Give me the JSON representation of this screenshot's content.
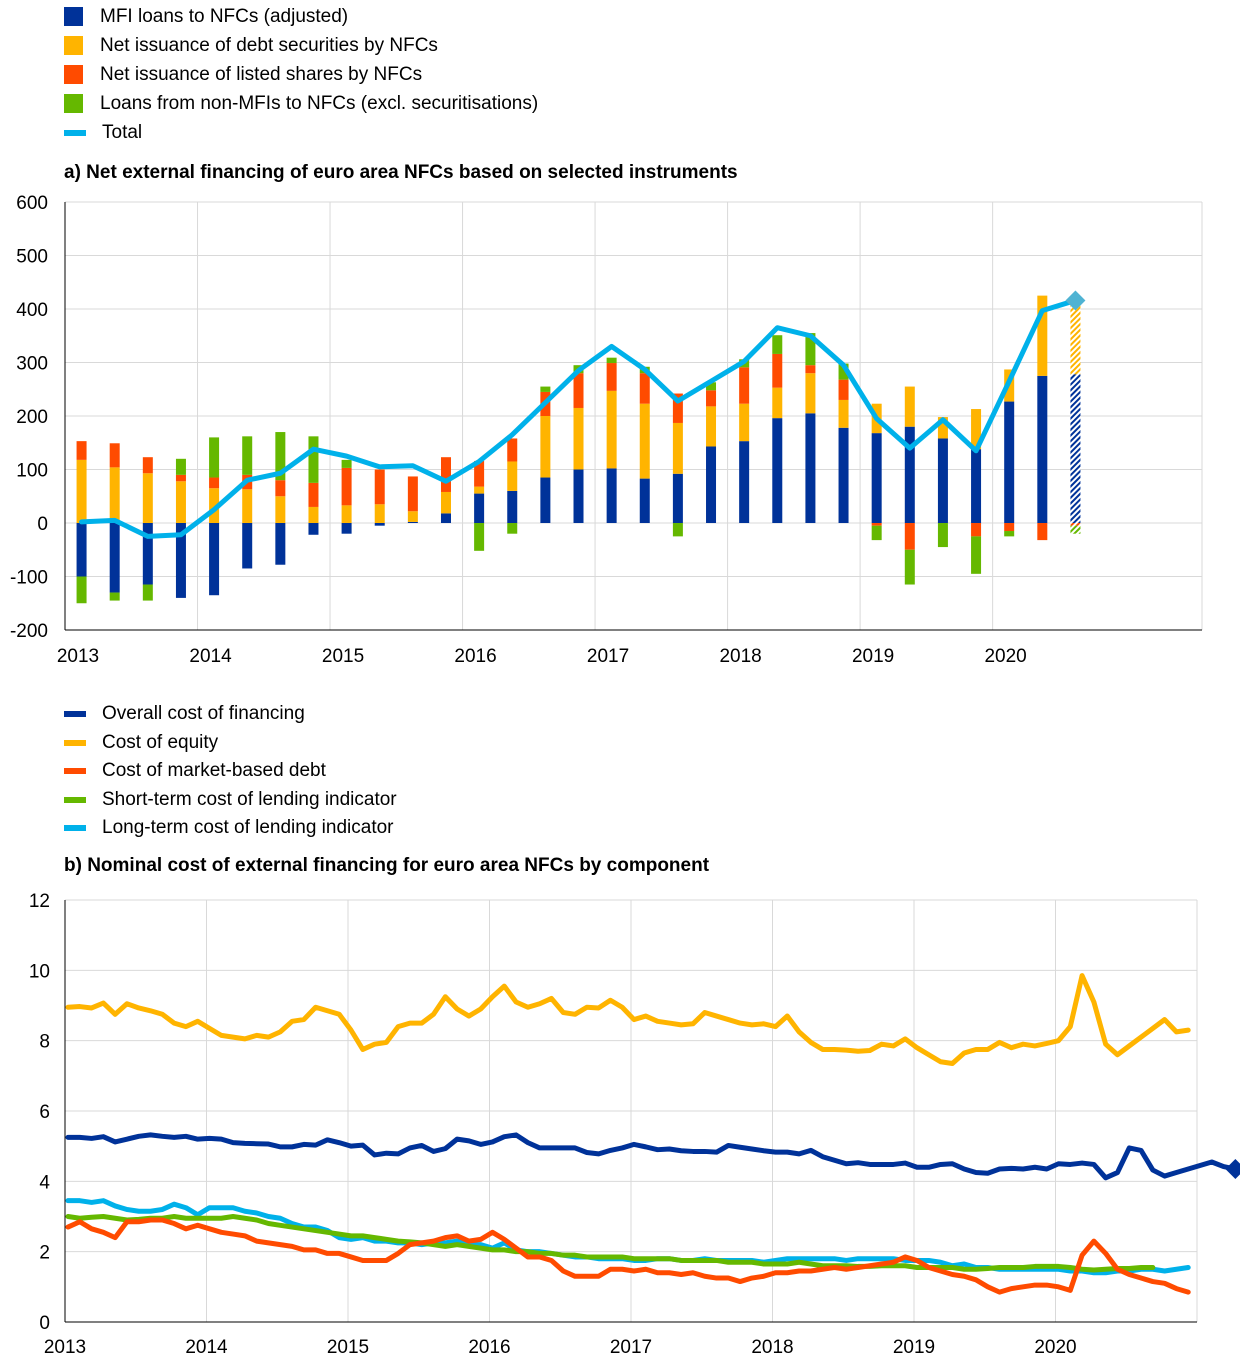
{
  "chart_data": [
    {
      "type": "bar",
      "title": "a) Net external financing of euro area NFCs based on selected instruments",
      "stacked": true,
      "legend_position": "top-left",
      "grid": true,
      "ylim": [
        -200,
        600
      ],
      "yticks": [
        "-200",
        "-100",
        "0",
        "100",
        "200",
        "300",
        "400",
        "500",
        "600"
      ],
      "xticks": [
        "2013",
        "2014",
        "2015",
        "2016",
        "2017",
        "2018",
        "2019",
        "2020"
      ],
      "categories": [
        "2013Q1",
        "2013Q2",
        "2013Q3",
        "2013Q4",
        "2014Q1",
        "2014Q2",
        "2014Q3",
        "2014Q4",
        "2015Q1",
        "2015Q2",
        "2015Q3",
        "2015Q4",
        "2016Q1",
        "2016Q2",
        "2016Q3",
        "2016Q4",
        "2017Q1",
        "2017Q2",
        "2017Q3",
        "2017Q4",
        "2018Q1",
        "2018Q2",
        "2018Q3",
        "2018Q4",
        "2019Q1",
        "2019Q2",
        "2019Q3",
        "2019Q4",
        "2020Q1",
        "2020Q2",
        "2020Q3"
      ],
      "series": [
        {
          "name": "MFI loans to NFCs (adjusted)",
          "color": "#003299",
          "values": [
            -100,
            -130,
            -115,
            -140,
            -135,
            -85,
            -78,
            -22,
            -20,
            -5,
            2,
            18,
            55,
            60,
            85,
            100,
            102,
            83,
            92,
            143,
            153,
            196,
            205,
            178,
            168,
            180,
            158,
            138,
            227,
            275,
            278
          ]
        },
        {
          "name": "Net issuance of debt securities by NFCs",
          "color": "#ffb400",
          "values": [
            118,
            104,
            93,
            78,
            65,
            63,
            50,
            30,
            33,
            35,
            20,
            40,
            13,
            55,
            115,
            115,
            145,
            140,
            95,
            75,
            70,
            57,
            75,
            52,
            55,
            75,
            40,
            75,
            60,
            150,
            137
          ]
        },
        {
          "name": "Net issuance of listed shares by NFCs",
          "color": "#ff4b00",
          "values": [
            35,
            45,
            30,
            12,
            20,
            27,
            30,
            45,
            70,
            65,
            65,
            65,
            48,
            43,
            45,
            65,
            52,
            57,
            55,
            30,
            68,
            63,
            15,
            38,
            -5,
            -50,
            0,
            -25,
            -15,
            -32,
            -5
          ]
        },
        {
          "name": "Loans from non-MFIs to NFCs (excl. securitisations)",
          "color": "#65b800",
          "values": [
            -50,
            -15,
            -30,
            30,
            75,
            72,
            90,
            87,
            15,
            0,
            0,
            0,
            -52,
            -20,
            10,
            15,
            10,
            12,
            -25,
            15,
            15,
            35,
            60,
            30,
            -27,
            -65,
            -45,
            -70,
            -10,
            0,
            -15
          ]
        },
        {
          "name": "Total",
          "color": "#00b1ea",
          "type": "line",
          "values": [
            2,
            5,
            -25,
            -22,
            25,
            80,
            93,
            138,
            125,
            105,
            107,
            78,
            115,
            165,
            225,
            285,
            330,
            287,
            228,
            265,
            302,
            365,
            350,
            295,
            195,
            140,
            193,
            135,
            265,
            397,
            416
          ]
        }
      ],
      "note": "Last quarter (2020Q3) shown hatched; diamond marks latest total"
    },
    {
      "type": "line",
      "title": "b) Nominal cost of external financing for euro area NFCs by component",
      "legend_position": "top-left",
      "grid": true,
      "ylim": [
        0,
        12
      ],
      "yticks": [
        "0",
        "2",
        "4",
        "6",
        "8",
        "10",
        "12"
      ],
      "xticks": [
        "2013",
        "2014",
        "2015",
        "2016",
        "2017",
        "2018",
        "2019",
        "2020"
      ],
      "x_start": "2013-01",
      "x_step": "month",
      "series": [
        {
          "name": "Overall cost of financing",
          "color": "#003299",
          "values": [
            5.25,
            5.25,
            5.22,
            5.27,
            5.12,
            5.2,
            5.28,
            5.32,
            5.28,
            5.25,
            5.28,
            5.2,
            5.22,
            5.2,
            5.1,
            5.08,
            5.07,
            5.06,
            4.98,
            4.98,
            5.05,
            5.03,
            5.18,
            5.1,
            5.0,
            5.03,
            4.75,
            4.8,
            4.78,
            4.95,
            5.02,
            4.85,
            4.93,
            5.2,
            5.15,
            5.05,
            5.12,
            5.27,
            5.32,
            5.1,
            4.95,
            4.95,
            4.95,
            4.95,
            4.82,
            4.78,
            4.88,
            4.95,
            5.05,
            4.98,
            4.9,
            4.92,
            4.87,
            4.85,
            4.85,
            4.83,
            5.02,
            4.97,
            4.92,
            4.87,
            4.83,
            4.83,
            4.78,
            4.88,
            4.7,
            4.6,
            4.5,
            4.53,
            4.48,
            4.48,
            4.48,
            4.52,
            4.4,
            4.4,
            4.48,
            4.5,
            4.35,
            4.25,
            4.23,
            4.35,
            4.37,
            4.35,
            4.4,
            4.35,
            4.5,
            4.48,
            4.52,
            4.48,
            4.1,
            4.25,
            4.95,
            4.88,
            4.32,
            4.15,
            4.25,
            4.35,
            4.45,
            4.55,
            4.42,
            4.35
          ]
        },
        {
          "name": "Cost of equity",
          "color": "#ffb400",
          "values": [
            8.95,
            8.97,
            8.93,
            9.07,
            8.75,
            9.05,
            8.93,
            8.85,
            8.75,
            8.5,
            8.4,
            8.55,
            8.35,
            8.15,
            8.1,
            8.05,
            8.15,
            8.1,
            8.25,
            8.55,
            8.6,
            8.95,
            8.85,
            8.75,
            8.3,
            7.75,
            7.9,
            7.95,
            8.4,
            8.5,
            8.5,
            8.75,
            9.25,
            8.9,
            8.7,
            8.9,
            9.25,
            9.55,
            9.1,
            8.95,
            9.05,
            9.2,
            8.8,
            8.75,
            8.95,
            8.93,
            9.15,
            8.95,
            8.6,
            8.7,
            8.55,
            8.5,
            8.45,
            8.48,
            8.8,
            8.7,
            8.6,
            8.5,
            8.45,
            8.48,
            8.4,
            8.7,
            8.25,
            7.95,
            7.75,
            7.75,
            7.73,
            7.7,
            7.72,
            7.9,
            7.85,
            8.05,
            7.8,
            7.6,
            7.4,
            7.35,
            7.65,
            7.75,
            7.75,
            7.95,
            7.8,
            7.9,
            7.85,
            7.92,
            8.0,
            8.4,
            9.85,
            9.1,
            7.9,
            7.6,
            7.85,
            8.1,
            8.35,
            8.6,
            8.25,
            8.3
          ]
        },
        {
          "name": "Cost of market-based debt",
          "color": "#ff4b00",
          "values": [
            2.7,
            2.85,
            2.65,
            2.55,
            2.4,
            2.85,
            2.85,
            2.9,
            2.9,
            2.8,
            2.65,
            2.75,
            2.65,
            2.55,
            2.5,
            2.45,
            2.3,
            2.25,
            2.2,
            2.15,
            2.05,
            2.05,
            1.95,
            1.95,
            1.85,
            1.75,
            1.75,
            1.75,
            1.95,
            2.2,
            2.25,
            2.3,
            2.4,
            2.45,
            2.3,
            2.35,
            2.55,
            2.35,
            2.1,
            1.85,
            1.85,
            1.75,
            1.45,
            1.3,
            1.3,
            1.3,
            1.5,
            1.5,
            1.45,
            1.5,
            1.4,
            1.4,
            1.35,
            1.4,
            1.3,
            1.25,
            1.25,
            1.15,
            1.25,
            1.3,
            1.4,
            1.4,
            1.45,
            1.45,
            1.5,
            1.55,
            1.5,
            1.55,
            1.6,
            1.65,
            1.7,
            1.85,
            1.75,
            1.55,
            1.45,
            1.35,
            1.3,
            1.2,
            1.0,
            0.85,
            0.95,
            1.0,
            1.05,
            1.05,
            1.0,
            0.9,
            1.9,
            2.3,
            1.95,
            1.5,
            1.35,
            1.25,
            1.15,
            1.1,
            0.95,
            0.85
          ]
        },
        {
          "name": "Short-term cost of lending indicator",
          "color": "#65b800",
          "values": [
            3.0,
            2.95,
            2.98,
            3.0,
            2.95,
            2.9,
            2.92,
            2.95,
            2.95,
            3.0,
            2.95,
            2.95,
            2.95,
            2.95,
            3.0,
            2.95,
            2.9,
            2.8,
            2.75,
            2.7,
            2.65,
            2.6,
            2.55,
            2.5,
            2.45,
            2.45,
            2.4,
            2.35,
            2.3,
            2.28,
            2.25,
            2.2,
            2.15,
            2.2,
            2.15,
            2.1,
            2.05,
            2.05,
            2.0,
            2.0,
            1.95,
            1.95,
            1.9,
            1.9,
            1.85,
            1.85,
            1.85,
            1.85,
            1.8,
            1.8,
            1.8,
            1.8,
            1.75,
            1.75,
            1.75,
            1.75,
            1.7,
            1.7,
            1.7,
            1.65,
            1.65,
            1.65,
            1.7,
            1.65,
            1.6,
            1.6,
            1.6,
            1.58,
            1.58,
            1.6,
            1.6,
            1.6,
            1.55,
            1.55,
            1.55,
            1.55,
            1.5,
            1.5,
            1.52,
            1.55,
            1.55,
            1.55,
            1.58,
            1.58,
            1.58,
            1.55,
            1.5,
            1.48,
            1.5,
            1.52,
            1.52,
            1.55,
            1.55
          ]
        },
        {
          "name": "Long-term cost of lending indicator",
          "color": "#00b1ea",
          "values": [
            3.45,
            3.45,
            3.4,
            3.45,
            3.3,
            3.2,
            3.15,
            3.15,
            3.2,
            3.35,
            3.25,
            3.05,
            3.25,
            3.25,
            3.25,
            3.15,
            3.1,
            3.0,
            2.95,
            2.8,
            2.7,
            2.7,
            2.6,
            2.4,
            2.35,
            2.4,
            2.3,
            2.3,
            2.25,
            2.25,
            2.2,
            2.25,
            2.25,
            2.3,
            2.2,
            2.2,
            2.1,
            2.25,
            2.05,
            2.0,
            2.0,
            1.95,
            1.9,
            1.85,
            1.85,
            1.8,
            1.8,
            1.8,
            1.75,
            1.75,
            1.8,
            1.8,
            1.75,
            1.75,
            1.8,
            1.75,
            1.75,
            1.75,
            1.75,
            1.7,
            1.75,
            1.8,
            1.8,
            1.8,
            1.8,
            1.8,
            1.75,
            1.8,
            1.8,
            1.8,
            1.8,
            1.75,
            1.75,
            1.75,
            1.7,
            1.6,
            1.65,
            1.55,
            1.55,
            1.5,
            1.5,
            1.5,
            1.5,
            1.5,
            1.5,
            1.45,
            1.45,
            1.4,
            1.4,
            1.45,
            1.45,
            1.5,
            1.5,
            1.45,
            1.5,
            1.55
          ]
        }
      ],
      "note": "Diamond marks latest overall cost of financing value"
    }
  ]
}
